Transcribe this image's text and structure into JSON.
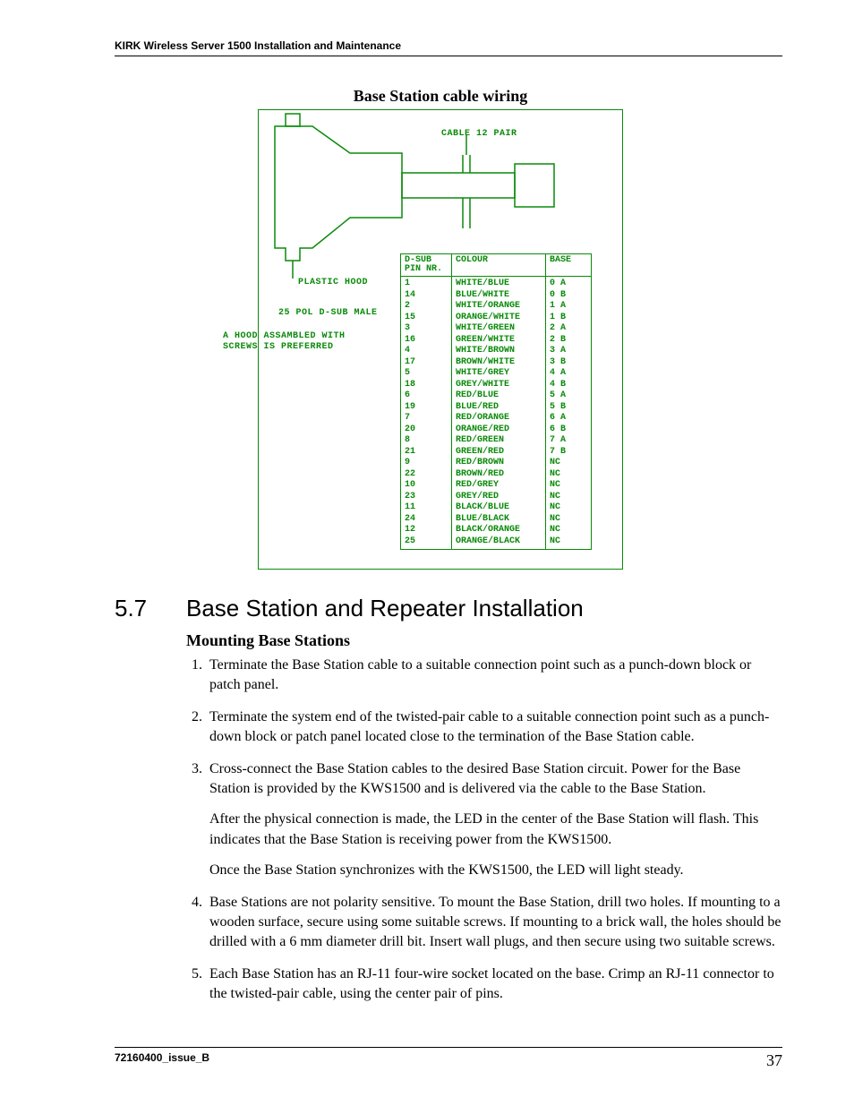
{
  "running_head": "KIRK Wireless Server 1500 Installation and Maintenance",
  "figure": {
    "caption": "Base Station cable wiring",
    "stroke": "#0a8a0a",
    "labels": {
      "cable": "CABLE 12 PAIR",
      "plastic_hood": "PLASTIC  HOOD",
      "connector1": "25 POL D-SUB MALE",
      "note1": "A HOOD ASSAMBLED WITH",
      "note2": "SCREWS IS PREFERRED"
    },
    "table": {
      "headers": [
        "D-SUB PIN NR.",
        "COLOUR",
        "BASE"
      ],
      "rows": [
        [
          "1",
          "WHITE/BLUE",
          "0 A"
        ],
        [
          "14",
          "BLUE/WHITE",
          "0 B"
        ],
        [
          "2",
          "WHITE/ORANGE",
          "1 A"
        ],
        [
          "15",
          "ORANGE/WHITE",
          "1 B"
        ],
        [
          "3",
          "WHITE/GREEN",
          "2 A"
        ],
        [
          "16",
          "GREEN/WHITE",
          "2 B"
        ],
        [
          "4",
          "WHITE/BROWN",
          "3 A"
        ],
        [
          "17",
          "BROWN/WHITE",
          "3 B"
        ],
        [
          "5",
          "WHITE/GREY",
          "4 A"
        ],
        [
          "18",
          "GREY/WHITE",
          "4 B"
        ],
        [
          "6",
          "RED/BLUE",
          "5 A"
        ],
        [
          "19",
          "BLUE/RED",
          "5 B"
        ],
        [
          "7",
          "RED/ORANGE",
          "6 A"
        ],
        [
          "20",
          "ORANGE/RED",
          "6 B"
        ],
        [
          "8",
          "RED/GREEN",
          "7 A"
        ],
        [
          "21",
          "GREEN/RED",
          "7 B"
        ],
        [
          "9",
          "RED/BROWN",
          "NC"
        ],
        [
          "22",
          "BROWN/RED",
          "NC"
        ],
        [
          "10",
          "RED/GREY",
          "NC"
        ],
        [
          "23",
          "GREY/RED",
          "NC"
        ],
        [
          "11",
          "BLACK/BLUE",
          "NC"
        ],
        [
          "24",
          "BLUE/BLACK",
          "NC"
        ],
        [
          "12",
          "BLACK/ORANGE",
          "NC"
        ],
        [
          "25",
          "ORANGE/BLACK",
          "NC"
        ]
      ]
    }
  },
  "section": {
    "number": "5.7",
    "title": "Base Station and Repeater Installation",
    "subheading": "Mounting Base Stations",
    "steps": [
      {
        "paras": [
          "Terminate the Base Station cable to a suitable connection point such as a punch-down block or patch panel."
        ]
      },
      {
        "paras": [
          "Terminate the system end of the twisted-pair cable to a suitable connection point such as a punch-down block or patch panel located close to the termination of the Base Station cable."
        ]
      },
      {
        "paras": [
          "Cross-connect the Base Station cables to the desired Base Station circuit. Power for the Base Station is provided by the KWS1500 and is delivered via the cable to the Base Station.",
          "After the physical connection is made, the LED in the center of the Base Station will flash. This indicates that the Base Station is receiving power from the KWS1500.",
          "Once the Base Station synchronizes with the KWS1500, the LED will light steady."
        ]
      },
      {
        "paras": [
          "Base Stations are not polarity sensitive. To mount the Base Station, drill two holes. If mounting to a wooden surface, secure using some suitable screws. If mounting to a brick wall, the holes should be drilled with a 6 mm diameter drill bit. Insert wall plugs, and then secure using two suitable screws."
        ]
      },
      {
        "paras": [
          "Each Base Station has an RJ-11 four-wire socket located on the base. Crimp an RJ-11 connector to the twisted-pair cable, using the center pair of pins."
        ]
      }
    ]
  },
  "footer": {
    "doc_id": "72160400_issue_B",
    "page": "37"
  }
}
